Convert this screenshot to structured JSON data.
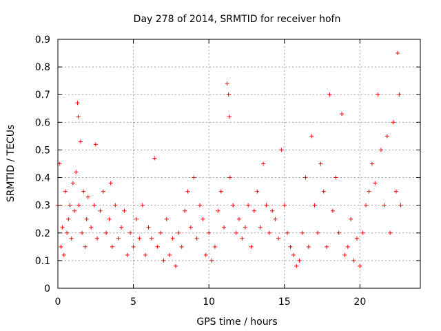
{
  "chart_data": {
    "type": "scatter",
    "title": "Day 278 of 2014, SRMTID for receiver hofn",
    "xlabel": "GPS time / hours",
    "ylabel": "SRMTID / TECUs",
    "xlim": [
      0,
      24
    ],
    "ylim": [
      0,
      0.9
    ],
    "x_ticks": [
      0,
      5,
      10,
      15,
      20
    ],
    "y_ticks": [
      0,
      0.1,
      0.2,
      0.3,
      0.4,
      0.5,
      0.6,
      0.7,
      0.8,
      0.9
    ],
    "grid": true,
    "marker": "+",
    "color": "#ff0000",
    "series": [
      {
        "name": "SRMTID",
        "x": [
          0.0,
          0.1,
          0.2,
          0.3,
          0.4,
          0.5,
          0.6,
          0.7,
          0.8,
          0.9,
          1.0,
          1.1,
          1.2,
          1.3,
          1.35,
          1.4,
          1.5,
          1.6,
          1.7,
          1.8,
          1.9,
          2.0,
          2.2,
          2.4,
          2.5,
          2.6,
          2.8,
          3.0,
          3.2,
          3.4,
          3.5,
          3.6,
          3.8,
          4.0,
          4.2,
          4.4,
          4.6,
          4.8,
          5.0,
          5.2,
          5.4,
          5.6,
          5.8,
          6.0,
          6.2,
          6.4,
          6.6,
          6.8,
          7.0,
          7.2,
          7.4,
          7.6,
          7.8,
          8.0,
          8.2,
          8.4,
          8.6,
          8.8,
          9.0,
          9.2,
          9.4,
          9.6,
          9.8,
          10.0,
          10.2,
          10.4,
          10.6,
          10.8,
          11.0,
          11.2,
          11.3,
          11.35,
          11.4,
          11.6,
          11.8,
          12.0,
          12.2,
          12.4,
          12.6,
          12.8,
          13.0,
          13.2,
          13.4,
          13.6,
          13.8,
          14.0,
          14.2,
          14.4,
          14.6,
          14.8,
          15.0,
          15.2,
          15.4,
          15.6,
          15.8,
          16.0,
          16.2,
          16.4,
          16.6,
          16.8,
          17.0,
          17.2,
          17.4,
          17.6,
          17.8,
          18.0,
          18.2,
          18.4,
          18.6,
          18.8,
          19.0,
          19.2,
          19.4,
          19.6,
          19.8,
          20.0,
          20.2,
          20.4,
          20.6,
          20.8,
          21.0,
          21.2,
          21.4,
          21.6,
          21.8,
          22.0,
          22.2,
          22.4,
          22.5,
          22.6,
          22.7
        ],
        "y": [
          0.3,
          0.45,
          0.15,
          0.22,
          0.12,
          0.35,
          0.2,
          0.25,
          0.3,
          0.18,
          0.38,
          0.28,
          0.42,
          0.67,
          0.62,
          0.3,
          0.53,
          0.2,
          0.35,
          0.15,
          0.25,
          0.33,
          0.22,
          0.3,
          0.52,
          0.18,
          0.28,
          0.35,
          0.2,
          0.25,
          0.38,
          0.15,
          0.3,
          0.18,
          0.22,
          0.28,
          0.12,
          0.2,
          0.15,
          0.25,
          0.18,
          0.3,
          0.12,
          0.22,
          0.18,
          0.47,
          0.15,
          0.2,
          0.1,
          0.25,
          0.12,
          0.18,
          0.08,
          0.2,
          0.15,
          0.28,
          0.35,
          0.22,
          0.4,
          0.18,
          0.3,
          0.25,
          0.12,
          0.2,
          0.1,
          0.15,
          0.28,
          0.35,
          0.22,
          0.74,
          0.7,
          0.62,
          0.4,
          0.3,
          0.2,
          0.25,
          0.18,
          0.22,
          0.3,
          0.15,
          0.28,
          0.35,
          0.22,
          0.45,
          0.3,
          0.2,
          0.28,
          0.25,
          0.18,
          0.5,
          0.3,
          0.2,
          0.15,
          0.12,
          0.08,
          0.1,
          0.2,
          0.4,
          0.15,
          0.55,
          0.3,
          0.2,
          0.45,
          0.35,
          0.15,
          0.7,
          0.28,
          0.4,
          0.2,
          0.63,
          0.12,
          0.15,
          0.25,
          0.1,
          0.18,
          0.08,
          0.2,
          0.3,
          0.35,
          0.45,
          0.38,
          0.7,
          0.5,
          0.3,
          0.55,
          0.2,
          0.6,
          0.35,
          0.85,
          0.7,
          0.3
        ]
      }
    ]
  }
}
